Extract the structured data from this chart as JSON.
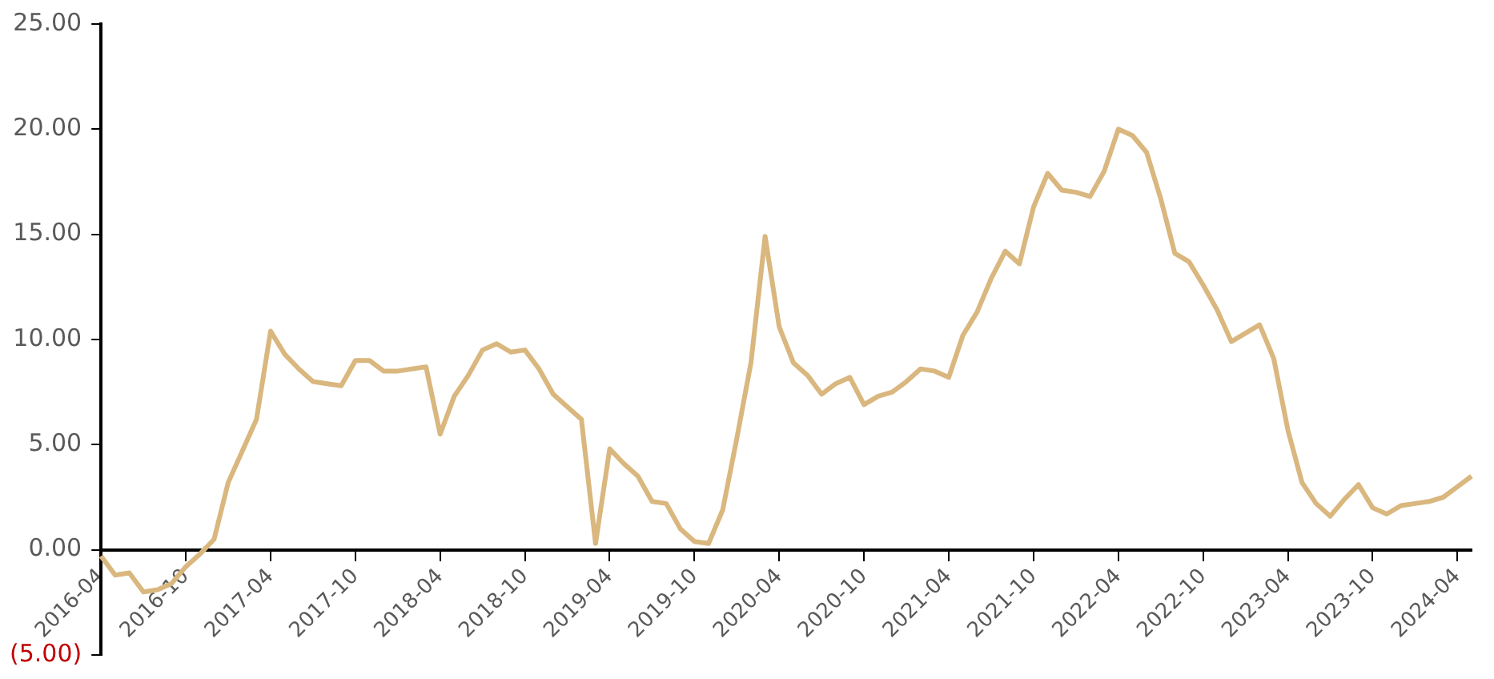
{
  "chart_data": {
    "type": "line",
    "categories": [
      "2016-04",
      null,
      null,
      null,
      null,
      null,
      "2016-10",
      null,
      null,
      null,
      null,
      null,
      "2017-04",
      null,
      null,
      null,
      null,
      null,
      "2017-10",
      null,
      null,
      null,
      null,
      null,
      "2018-04",
      null,
      null,
      null,
      null,
      null,
      "2018-10",
      null,
      null,
      null,
      null,
      null,
      "2019-04",
      null,
      null,
      null,
      null,
      null,
      "2019-10",
      null,
      null,
      null,
      null,
      null,
      "2020-04",
      null,
      null,
      null,
      null,
      null,
      "2020-10",
      null,
      null,
      null,
      null,
      null,
      "2021-04",
      null,
      null,
      null,
      null,
      null,
      "2021-10",
      null,
      null,
      null,
      null,
      null,
      "2022-04",
      null,
      null,
      null,
      null,
      null,
      "2022-10",
      null,
      null,
      null,
      null,
      null,
      "2023-04",
      null,
      null,
      null,
      null,
      null,
      "2023-10",
      null,
      null,
      null,
      null,
      null,
      "2024-04",
      null
    ],
    "series": [
      {
        "color": "#d9b77e",
        "values": [
          -0.3,
          -1.2,
          -1.1,
          -2.0,
          -1.9,
          -1.6,
          -0.8,
          -0.2,
          0.5,
          3.2,
          4.7,
          6.2,
          10.4,
          9.3,
          8.6,
          8.0,
          7.9,
          7.8,
          9.0,
          9.0,
          8.5,
          8.5,
          8.6,
          8.7,
          5.5,
          7.3,
          8.3,
          9.5,
          9.8,
          9.4,
          9.5,
          8.6,
          7.4,
          6.8,
          6.2,
          0.3,
          4.8,
          4.1,
          3.5,
          2.3,
          2.2,
          1.0,
          0.4,
          0.3,
          1.9,
          5.3,
          8.9,
          14.9,
          10.6,
          8.9,
          8.3,
          7.4,
          7.9,
          8.2,
          6.9,
          7.3,
          7.5,
          8.0,
          8.6,
          8.5,
          8.2,
          10.2,
          11.3,
          12.9,
          14.2,
          13.6,
          16.3,
          17.9,
          17.1,
          17.0,
          16.8,
          18.0,
          20.0,
          19.7,
          18.9,
          16.7,
          14.1,
          13.7,
          12.6,
          11.4,
          9.9,
          10.3,
          10.7,
          9.1,
          5.7,
          3.2,
          2.2,
          1.6,
          2.4,
          3.1,
          2.0,
          1.7,
          2.1,
          2.2,
          2.3,
          2.5,
          3.0,
          3.5
        ]
      }
    ],
    "ylim": [
      -5,
      25
    ],
    "yticks": [
      {
        "value": -5,
        "label": "(5.00)"
      },
      {
        "value": 0,
        "label": "0.00"
      },
      {
        "value": 5,
        "label": "5.00"
      },
      {
        "value": 10,
        "label": "10.00"
      },
      {
        "value": 15,
        "label": "15.00"
      },
      {
        "value": 20,
        "label": "20.00"
      },
      {
        "value": 25,
        "label": "25.00"
      }
    ],
    "grid": false,
    "legend": false,
    "marker": "none",
    "line_style": "solid"
  }
}
